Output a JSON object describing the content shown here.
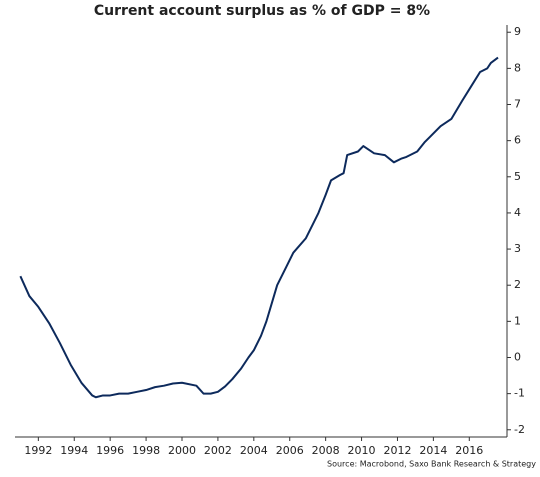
{
  "chart_data": {
    "type": "line",
    "title": "Current account surplus as % of GDP = 8%",
    "source": "Source: Macrobond, Saxo Bank Research & Strategy",
    "x": [
      1991.0,
      1991.5,
      1992.0,
      1992.6,
      1993.2,
      1993.8,
      1994.4,
      1995.0,
      1995.2,
      1995.6,
      1996.0,
      1996.5,
      1997.0,
      1997.5,
      1998.0,
      1998.5,
      1999.0,
      1999.5,
      2000.0,
      2000.8,
      2001.2,
      2001.6,
      2002.0,
      2002.4,
      2002.8,
      2003.3,
      2003.7,
      2004.0,
      2004.4,
      2004.7,
      2005.0,
      2005.3,
      2005.8,
      2006.2,
      2006.9,
      2007.3,
      2007.6,
      2008.0,
      2008.3,
      2008.8,
      2009.0,
      2009.2,
      2009.8,
      2010.1,
      2010.4,
      2010.7,
      2011.3,
      2011.8,
      2012.2,
      2012.5,
      2013.1,
      2013.5,
      2013.8,
      2014.4,
      2015.0,
      2015.6,
      2016.1,
      2016.6,
      2017.0,
      2017.2,
      2017.6
    ],
    "series": [
      {
        "name": "Current account surplus as % of GDP",
        "color": "#0d2a5c",
        "values": [
          2.25,
          1.7,
          1.4,
          0.95,
          0.4,
          -0.2,
          -0.7,
          -1.05,
          -1.1,
          -1.05,
          -1.05,
          -1.0,
          -1.0,
          -0.95,
          -0.9,
          -0.82,
          -0.78,
          -0.72,
          -0.7,
          -0.78,
          -1.0,
          -1.0,
          -0.95,
          -0.8,
          -0.6,
          -0.3,
          0.0,
          0.2,
          0.6,
          1.0,
          1.5,
          2.0,
          2.5,
          2.9,
          3.3,
          3.7,
          4.0,
          4.5,
          4.9,
          5.05,
          5.1,
          5.6,
          5.7,
          5.85,
          5.75,
          5.65,
          5.6,
          5.4,
          5.5,
          5.55,
          5.7,
          5.95,
          6.1,
          6.4,
          6.6,
          7.1,
          7.5,
          7.9,
          8.0,
          8.15,
          8.3
        ]
      }
    ],
    "xlim": [
      1990.7,
      2018.1
    ],
    "xticks": [
      1992,
      1994,
      1996,
      1998,
      2000,
      2002,
      2004,
      2006,
      2008,
      2010,
      2012,
      2014,
      2016
    ],
    "ylim": [
      -2.2,
      9.2
    ],
    "yticks": [
      -2,
      -1,
      0,
      1,
      2,
      3,
      4,
      5,
      6,
      7,
      8,
      9
    ]
  }
}
